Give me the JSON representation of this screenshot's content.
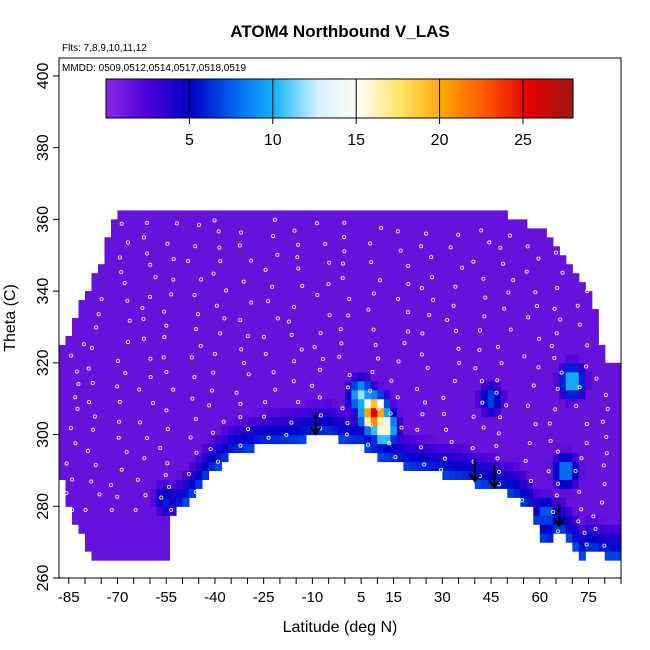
{
  "chart_data": {
    "type": "heatmap",
    "title": "ATOM4 Northbound V_LAS",
    "subtitle_flights": "Flts: 7,8,9,10,11,12",
    "subtitle_dates": "MMDD: 0509,0512,0514,0517,0518,0519",
    "xlabel": "Latitude (deg N)",
    "ylabel": "Theta (C)",
    "xlim": [
      -88,
      85
    ],
    "ylim": [
      260,
      405
    ],
    "x_ticks": [
      -85,
      -70,
      -55,
      -40,
      -25,
      -10,
      5,
      15,
      30,
      45,
      60,
      75
    ],
    "y_ticks": [
      260,
      280,
      300,
      320,
      340,
      360,
      380,
      400
    ],
    "colorbar": {
      "min": 0,
      "max": 28,
      "ticks": [
        5,
        10,
        15,
        20,
        25
      ],
      "colors": [
        "#8a2be2",
        "#4b00d8",
        "#0000c8",
        "#0060f0",
        "#18b8f8",
        "#d8f0ff",
        "#fffff0",
        "#ffe060",
        "#ffa000",
        "#ff5000",
        "#e00000",
        "#a01818"
      ]
    },
    "background_value": 1.5,
    "floor_profile": {
      "lat": [
        -53,
        -47,
        -42,
        -35,
        -25,
        -15,
        -10,
        -5,
        0,
        5,
        10,
        15,
        22,
        28,
        33,
        38,
        45,
        52,
        58,
        62,
        66,
        70,
        73,
        76,
        80
      ],
      "theta": [
        277,
        283,
        289,
        294,
        297,
        298,
        299.5,
        300,
        298,
        297,
        294,
        292,
        290,
        289,
        288,
        287,
        285,
        283,
        278,
        268,
        274,
        270,
        266,
        268,
        266
      ]
    },
    "top_profile": {
      "lat": [
        -88,
        -85,
        -80,
        -75,
        -72,
        -70,
        -60,
        -40,
        0,
        20,
        40,
        50,
        55,
        60,
        65,
        70,
        75,
        78,
        80
      ],
      "theta": [
        322,
        326,
        338,
        346,
        356,
        362,
        362,
        362,
        362,
        361,
        361,
        360,
        358,
        356,
        352,
        345,
        338,
        330,
        320
      ]
    },
    "bottom_profile": {
      "lat": [
        -88,
        -85,
        -80,
        -76,
        -60
      ],
      "theta": [
        290,
        280,
        270,
        265,
        265
      ]
    },
    "enhancements": [
      {
        "lat": 9,
        "theta": 306,
        "peak": 26
      },
      {
        "lat": 12,
        "theta": 302,
        "peak": 17
      },
      {
        "lat": 5,
        "theta": 311,
        "peak": 12
      },
      {
        "lat": 70,
        "theta": 315,
        "peak": 11
      },
      {
        "lat": 68,
        "theta": 290,
        "peak": 9
      },
      {
        "lat": 45,
        "theta": 310,
        "peak": 7
      },
      {
        "lat": 62,
        "theta": 278,
        "peak": 8
      },
      {
        "lat": -55,
        "theta": 282,
        "peak": 6
      }
    ],
    "arrows_lat": [
      -9,
      40,
      46,
      66
    ],
    "sample_tracks_lat": [
      -84,
      -78,
      -70,
      -62,
      -55,
      -48,
      -40,
      -32,
      -24,
      -16,
      -8,
      0,
      8,
      16,
      24,
      32,
      40,
      48,
      56,
      64,
      72,
      78
    ]
  }
}
